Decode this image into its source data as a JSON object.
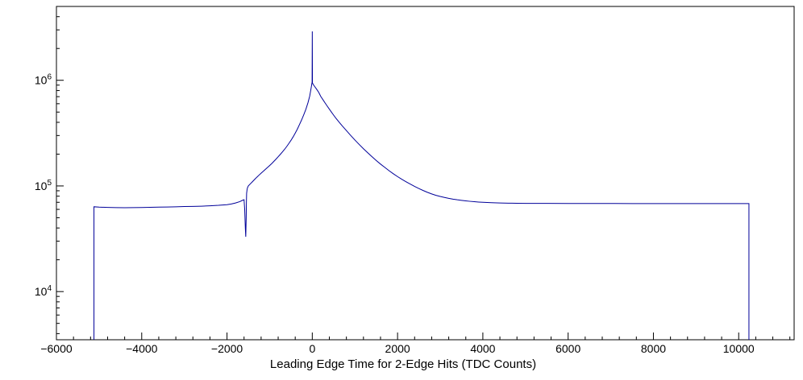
{
  "chart_data": {
    "type": "line",
    "title": "Leading Edge Time for 2-Edge Hits (TDC Counts)",
    "xlabel": "Leading Edge Time for 2-Edge Hits (TDC Counts)",
    "ylabel": "",
    "y_scale": "log",
    "xlim": [
      -6000,
      11300
    ],
    "ylim": [
      3500,
      5000000
    ],
    "grid": false,
    "legend": "none",
    "line_color": "#000099",
    "axis_color": "#000000",
    "background_color": "#ffffff",
    "x_tick_values": [
      -6000,
      -4000,
      -2000,
      0,
      2000,
      4000,
      6000,
      8000,
      10000
    ],
    "x_tick_labels": [
      "−6000",
      "−4000",
      "−2000",
      "0",
      "2000",
      "4000",
      "6000",
      "8000",
      "10000"
    ],
    "x_minor_step": 400,
    "y_tick_values": [
      10000,
      100000,
      1000000
    ],
    "y_tick_base": "10",
    "y_tick_exponents": [
      "4",
      "5",
      "6"
    ],
    "histogram_range": [
      -5120,
      10240
    ],
    "points": [
      [
        -5120,
        3500
      ],
      [
        -5120,
        63500
      ],
      [
        -5000,
        63000
      ],
      [
        -4800,
        62600
      ],
      [
        -4600,
        62300
      ],
      [
        -4400,
        62200
      ],
      [
        -4200,
        62300
      ],
      [
        -4000,
        62500
      ],
      [
        -3800,
        62700
      ],
      [
        -3600,
        63000
      ],
      [
        -3400,
        63200
      ],
      [
        -3200,
        63500
      ],
      [
        -3000,
        63800
      ],
      [
        -2800,
        64000
      ],
      [
        -2600,
        64300
      ],
      [
        -2400,
        64800
      ],
      [
        -2200,
        65500
      ],
      [
        -2000,
        66500
      ],
      [
        -1900,
        67500
      ],
      [
        -1800,
        69000
      ],
      [
        -1700,
        71000
      ],
      [
        -1640,
        73000
      ],
      [
        -1600,
        74000
      ],
      [
        -1585,
        60000
      ],
      [
        -1570,
        40000
      ],
      [
        -1560,
        33000
      ],
      [
        -1550,
        50000
      ],
      [
        -1545,
        70000
      ],
      [
        -1540,
        85000
      ],
      [
        -1530,
        92000
      ],
      [
        -1520,
        96000
      ],
      [
        -1500,
        100000
      ],
      [
        -1450,
        105000
      ],
      [
        -1400,
        110000
      ],
      [
        -1350,
        115500
      ],
      [
        -1300,
        121000
      ],
      [
        -1250,
        126500
      ],
      [
        -1200,
        132000
      ],
      [
        -1150,
        137500
      ],
      [
        -1100,
        143500
      ],
      [
        -1050,
        149500
      ],
      [
        -1000,
        156000
      ],
      [
        -950,
        163000
      ],
      [
        -900,
        171000
      ],
      [
        -850,
        179500
      ],
      [
        -800,
        189000
      ],
      [
        -750,
        199000
      ],
      [
        -700,
        210000
      ],
      [
        -650,
        222000
      ],
      [
        -600,
        236000
      ],
      [
        -550,
        252000
      ],
      [
        -500,
        270000
      ],
      [
        -450,
        291000
      ],
      [
        -400,
        316000
      ],
      [
        -350,
        345000
      ],
      [
        -300,
        381000
      ],
      [
        -250,
        422000
      ],
      [
        -200,
        472000
      ],
      [
        -150,
        532000
      ],
      [
        -100,
        615000
      ],
      [
        -60,
        710000
      ],
      [
        -30,
        830000
      ],
      [
        -10,
        930000
      ],
      [
        -4,
        960000
      ],
      [
        0,
        2900000
      ],
      [
        4,
        945000
      ],
      [
        20,
        915000
      ],
      [
        50,
        880000
      ],
      [
        100,
        825000
      ],
      [
        150,
        770000
      ],
      [
        200,
        702000
      ],
      [
        250,
        655000
      ],
      [
        300,
        610000
      ],
      [
        350,
        570000
      ],
      [
        400,
        533000
      ],
      [
        450,
        499000
      ],
      [
        500,
        468000
      ],
      [
        550,
        440000
      ],
      [
        600,
        415000
      ],
      [
        650,
        392000
      ],
      [
        700,
        371000
      ],
      [
        750,
        352000
      ],
      [
        800,
        334000
      ],
      [
        850,
        317000
      ],
      [
        900,
        301000
      ],
      [
        950,
        286000
      ],
      [
        1000,
        272000
      ],
      [
        1100,
        247000
      ],
      [
        1200,
        225000
      ],
      [
        1300,
        206000
      ],
      [
        1400,
        189000
      ],
      [
        1500,
        174000
      ],
      [
        1600,
        161000
      ],
      [
        1700,
        150000
      ],
      [
        1800,
        139500
      ],
      [
        1900,
        130500
      ],
      [
        2000,
        122500
      ],
      [
        2100,
        115500
      ],
      [
        2200,
        109500
      ],
      [
        2300,
        104000
      ],
      [
        2400,
        99000
      ],
      [
        2500,
        94500
      ],
      [
        2600,
        90500
      ],
      [
        2700,
        87000
      ],
      [
        2800,
        84000
      ],
      [
        2900,
        81500
      ],
      [
        3000,
        79500
      ],
      [
        3100,
        77800
      ],
      [
        3200,
        76300
      ],
      [
        3300,
        75000
      ],
      [
        3400,
        73900
      ],
      [
        3500,
        73000
      ],
      [
        3600,
        72200
      ],
      [
        3700,
        71500
      ],
      [
        3800,
        70900
      ],
      [
        3900,
        70400
      ],
      [
        4000,
        70000
      ],
      [
        4200,
        69400
      ],
      [
        4400,
        69000
      ],
      [
        4600,
        68700
      ],
      [
        4800,
        68500
      ],
      [
        5000,
        68400
      ],
      [
        5500,
        68300
      ],
      [
        6000,
        68250
      ],
      [
        6500,
        68200
      ],
      [
        7000,
        68150
      ],
      [
        7500,
        68100
      ],
      [
        8000,
        68100
      ],
      [
        8500,
        68050
      ],
      [
        9000,
        68050
      ],
      [
        9500,
        68000
      ],
      [
        10000,
        68000
      ],
      [
        10240,
        68000
      ],
      [
        10240,
        3500
      ]
    ]
  }
}
